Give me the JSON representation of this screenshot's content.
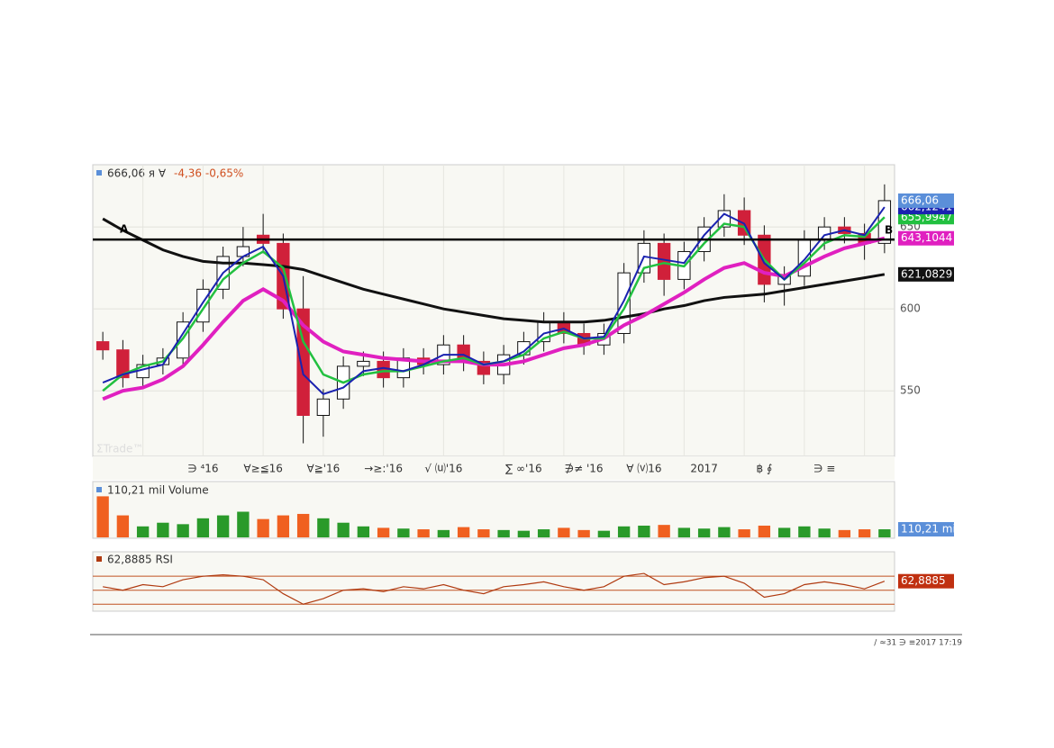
{
  "chart_data": [
    {
      "type": "candlestick",
      "header_value": "666,06 я ∀",
      "header_change": "-4,36 -0,65%",
      "watermark": "ΣTrade™",
      "categories": [
        null,
        null,
        null,
        null,
        null,
        "∋  ⁴16",
        null,
        null,
        "∀≥≦16",
        null,
        null,
        "∀≧'16",
        null,
        null,
        "→≥:'16",
        null,
        null,
        "√ ⒰'16",
        null,
        null,
        null,
        "∑ ∞'16",
        null,
        null,
        "∌≠ '16",
        null,
        null,
        "∀ ⒱16",
        null,
        null,
        "2017",
        null,
        null,
        "฿ ∮",
        null,
        null,
        "∋  ≡",
        null,
        null,
        null
      ],
      "open": [
        580,
        575,
        558,
        566,
        570,
        592,
        612,
        632,
        645,
        640,
        600,
        535,
        545,
        565,
        568,
        558,
        570,
        566,
        578,
        568,
        560,
        572,
        580,
        592,
        585,
        578,
        585,
        622,
        640,
        618,
        635,
        650,
        660,
        645,
        615,
        620,
        642,
        650,
        646,
        640
      ],
      "high": [
        586,
        581,
        572,
        576,
        598,
        618,
        638,
        650,
        658,
        646,
        620,
        551,
        571,
        574,
        574,
        576,
        576,
        584,
        584,
        574,
        578,
        586,
        598,
        598,
        591,
        591,
        628,
        648,
        646,
        641,
        656,
        670,
        668,
        651,
        626,
        648,
        656,
        656,
        652,
        676
      ],
      "low": [
        569,
        552,
        552,
        560,
        564,
        586,
        606,
        626,
        634,
        594,
        518,
        522,
        539,
        559,
        552,
        552,
        560,
        560,
        562,
        554,
        554,
        566,
        574,
        579,
        572,
        572,
        579,
        616,
        608,
        612,
        629,
        644,
        639,
        604,
        602,
        614,
        636,
        640,
        630,
        634
      ],
      "close": [
        575,
        558,
        566,
        570,
        592,
        612,
        632,
        638,
        640,
        600,
        535,
        545,
        565,
        568,
        558,
        570,
        566,
        578,
        568,
        560,
        572,
        580,
        592,
        585,
        578,
        585,
        622,
        640,
        618,
        635,
        650,
        660,
        645,
        615,
        620,
        642,
        650,
        646,
        640,
        666.06
      ],
      "close_label": "666,06",
      "up_color": "#ffffff",
      "down_color": "#d0203a",
      "close_label_color": "#5b8fd9",
      "lines": [
        {
          "color": "#111111",
          "width": 3,
          "end_label": "621,0829",
          "values": [
            655,
            648,
            642,
            636,
            632,
            629,
            628,
            628,
            627,
            626,
            624,
            620,
            616,
            612,
            609,
            606,
            603,
            600,
            598,
            596,
            594,
            593,
            592,
            592,
            592,
            593,
            595,
            597,
            600,
            602,
            605,
            607,
            608,
            609,
            611,
            613,
            615,
            617,
            619,
            621.0829
          ]
        },
        {
          "color": "#e020c0",
          "width": 4,
          "end_label": "643,1044",
          "values": [
            545,
            550,
            552,
            557,
            565,
            578,
            592,
            605,
            612,
            605,
            590,
            580,
            574,
            572,
            570,
            569,
            568,
            568,
            568,
            566,
            566,
            568,
            572,
            576,
            578,
            582,
            590,
            596,
            603,
            610,
            618,
            625,
            628,
            622,
            620,
            626,
            632,
            637,
            640,
            643.1044
          ]
        },
        {
          "color": "#22c040",
          "width": 2.5,
          "end_label": "655,9947",
          "values": [
            550,
            560,
            565,
            568,
            582,
            600,
            618,
            628,
            635,
            625,
            580,
            560,
            555,
            560,
            562,
            562,
            565,
            568,
            570,
            566,
            568,
            572,
            582,
            586,
            582,
            582,
            600,
            625,
            628,
            626,
            640,
            652,
            650,
            630,
            618,
            628,
            640,
            645,
            644,
            655.9947
          ]
        },
        {
          "color": "#1a22b0",
          "width": 2,
          "end_label": "662,1241",
          "values": [
            555,
            560,
            563,
            566,
            585,
            604,
            622,
            632,
            638,
            620,
            560,
            548,
            552,
            562,
            564,
            562,
            566,
            572,
            572,
            566,
            568,
            574,
            585,
            588,
            582,
            583,
            605,
            632,
            630,
            628,
            645,
            658,
            652,
            628,
            618,
            630,
            645,
            648,
            645,
            662.1241
          ]
        }
      ],
      "hline": {
        "value": 642.3,
        "left_label": "A",
        "right_label": "B"
      },
      "ylim": [
        510,
        688
      ],
      "yticks": [
        550,
        600,
        650
      ]
    },
    {
      "type": "bar",
      "header": "110,21 mil Volume",
      "end_label": "110,21 mil",
      "up_color": "#2a9a2a",
      "down_color": "#f06020",
      "values": [
        560,
        300,
        150,
        200,
        180,
        260,
        300,
        350,
        250,
        300,
        320,
        260,
        200,
        150,
        130,
        120,
        110,
        100,
        140,
        110,
        100,
        90,
        110,
        130,
        100,
        90,
        150,
        160,
        170,
        130,
        120,
        140,
        110,
        160,
        130,
        150,
        120,
        100,
        110,
        110.21
      ],
      "ylim": [
        0,
        700
      ]
    },
    {
      "type": "line",
      "header": "62,8885 RSI",
      "end_label": "62,8885",
      "color": "#b03a10",
      "values": [
        55,
        50,
        58,
        55,
        65,
        70,
        72,
        70,
        65,
        45,
        30,
        38,
        50,
        52,
        48,
        55,
        52,
        58,
        50,
        45,
        55,
        58,
        62,
        55,
        50,
        55,
        70,
        74,
        58,
        62,
        68,
        70,
        60,
        40,
        45,
        58,
        62,
        58,
        52,
        62.8885
      ],
      "levels": [
        30,
        50,
        70
      ],
      "ylim": [
        20,
        105
      ]
    }
  ],
  "footer": {
    "timestamp": "∕ ≈31 ∋ ≡2017 17:19"
  }
}
